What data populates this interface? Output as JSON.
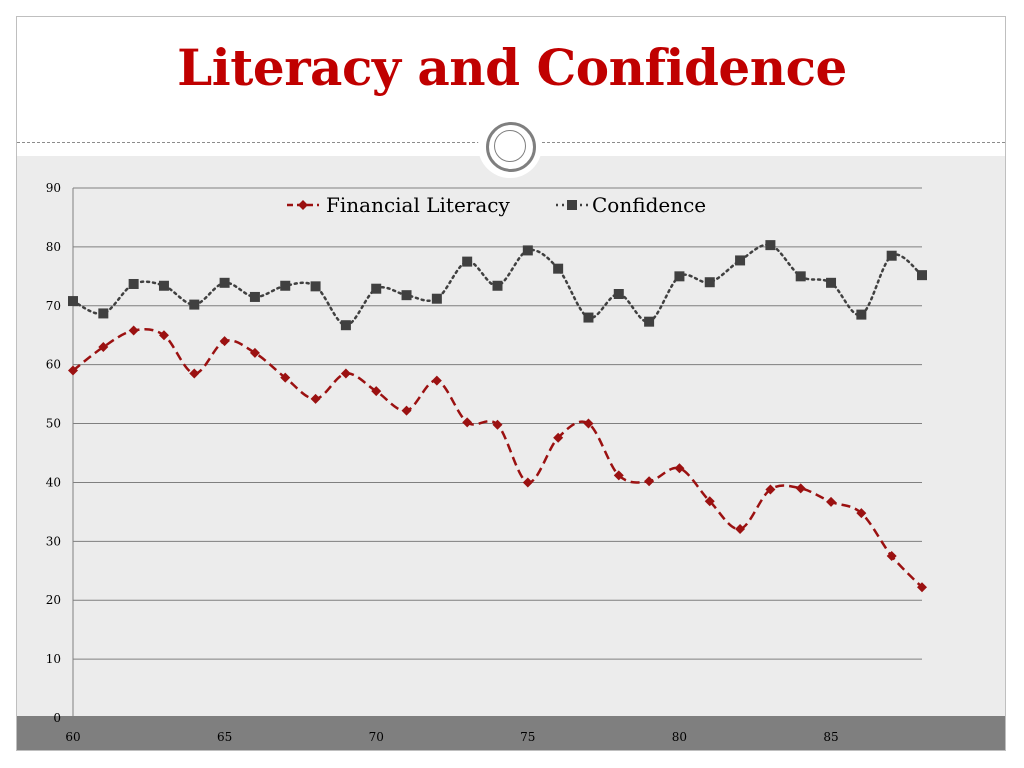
{
  "slide": {
    "title": "Literacy and Confidence"
  },
  "colors": {
    "title": "#c00000",
    "literacy": "#9b1111",
    "confidence": "#404040",
    "plot_bg": "#ececec",
    "band": "#7f7f7f",
    "grid": "#7f7f7f"
  },
  "chart_data": {
    "type": "line",
    "title": "",
    "xlabel": "",
    "ylabel": "",
    "xlim": [
      60,
      88
    ],
    "ylim": [
      0,
      90
    ],
    "yticks": [
      0,
      10,
      20,
      30,
      40,
      50,
      60,
      70,
      80,
      90
    ],
    "xticks": [
      60,
      65,
      70,
      75,
      80,
      85
    ],
    "grid": true,
    "legend": "top-center",
    "x": [
      60,
      61,
      62,
      63,
      64,
      65,
      66,
      67,
      68,
      69,
      70,
      71,
      72,
      73,
      74,
      75,
      76,
      77,
      78,
      79,
      80,
      81,
      82,
      83,
      84,
      85,
      86,
      87,
      88
    ],
    "series": [
      {
        "name": "Financial Literacy",
        "values": [
          59,
          63,
          65.8,
          65,
          58.5,
          64,
          62,
          57.8,
          54.2,
          58.5,
          55.5,
          52.2,
          57.3,
          50.2,
          49.8,
          40,
          47.6,
          50,
          41.2,
          40.2,
          42.4,
          36.8,
          32.1,
          38.8,
          39,
          36.7,
          34.8,
          27.5,
          22.2
        ]
      },
      {
        "name": "Confidence",
        "values": [
          70.8,
          68.7,
          73.7,
          73.4,
          70.2,
          73.9,
          71.5,
          73.4,
          73.3,
          66.7,
          72.9,
          71.8,
          71.2,
          77.5,
          73.4,
          79.4,
          76.3,
          68,
          72,
          67.3,
          75,
          74,
          77.7,
          80.3,
          75,
          73.9,
          68.5,
          78.5,
          75.2
        ]
      }
    ]
  }
}
